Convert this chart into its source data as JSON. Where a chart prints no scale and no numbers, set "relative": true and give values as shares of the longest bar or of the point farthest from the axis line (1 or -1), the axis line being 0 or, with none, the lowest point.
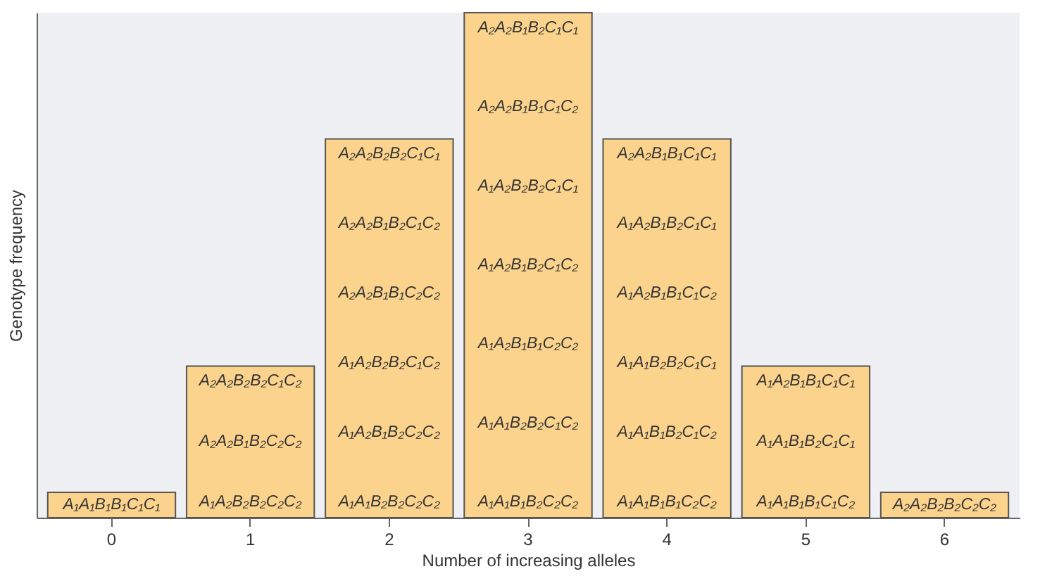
{
  "chart_data": {
    "type": "bar",
    "relative": true,
    "xlabel": "Number of increasing alleles",
    "ylabel": "Genotype frequency",
    "categories": [
      "0",
      "1",
      "2",
      "3",
      "4",
      "5",
      "6"
    ],
    "values": [
      0.05,
      0.3,
      0.75,
      1,
      0.75,
      0.3,
      0.05
    ],
    "color": "#fbd38d",
    "grid": false,
    "annotations": [
      "A₁A₁B₁B₁C₁C₁",
      "A₂A₂B₂B₂C₁C₂\nA₂A₂B₁B₂C₂C₂\nA₁A₂B₂B₂C₂C₂",
      "A₂A₂B₂B₂C₁C₁\nA₂A₂B₁B₂C₁C₂\nA₂A₂B₁B₁C₂C₂\nA₁A₂B₂B₂C₁C₂\nA₁A₂B₁B₂C₂C₂\nA₁A₁B₂B₂C₂C₂",
      "A₂A₂B₁B₂C₁C₁\nA₂A₂B₁B₁C₁C₂\nA₁A₂B₂B₂C₁C₁\nA₁A₂B₁B₂C₁C₂\nA₁A₂B₁B₁C₂C₂\nA₁A₁B₂B₂C₁C₂\nA₁A₁B₁B₂C₂C₂",
      "A₂A₂B₁B₁C₁C₁\nA₁A₂B₁B₂C₁C₁\nA₁A₂B₁B₁C₁C₂\nA₁A₁B₂B₂C₁C₁\nA₁A₁B₁B₂C₁C₂\nA₁A₁B₁B₁C₂C₂",
      "A₁A₂B₁B₁C₁C₁\nA₁A₁B₁B₂C₁C₁\nA₁A₁B₁B₁C₁C₂",
      "A₂A₂B₂B₂C₂C₂"
    ]
  }
}
